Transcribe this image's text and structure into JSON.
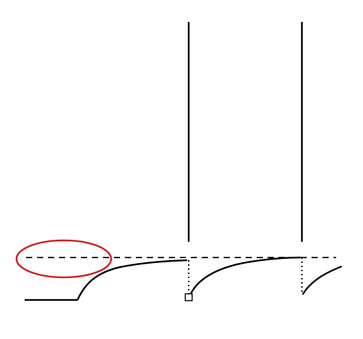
{
  "diagram": {
    "description_free": true,
    "colors": {
      "line": "#000000",
      "highlight": "#cc1f1f",
      "background": "#ffffff"
    },
    "elements": {
      "threshold_line": "dashed",
      "spikes": 2,
      "recovery_curves": 3,
      "reset_marker": "square",
      "highlight_marker": "ellipse"
    }
  }
}
